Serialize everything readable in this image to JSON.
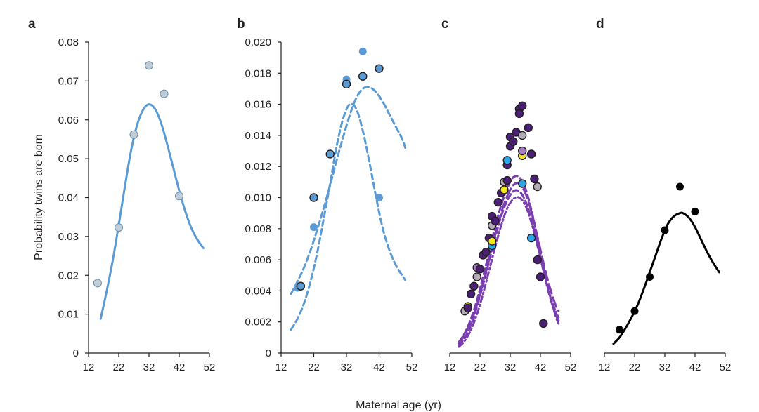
{
  "figure": {
    "y_axis_title": "Probability twins are born",
    "x_axis_title": "Maternal age (yr)"
  },
  "colors": {
    "blue_line": "#5b9bd5",
    "light_blue_dot": "#bfcdd9",
    "mid_blue_dot": "#5b9bd5",
    "cyan_dot": "#2aa5e8",
    "purple_line": "#7a3eb1",
    "dark_purple_dot": "#4a1f75",
    "yellow_dot": "#f4e61d",
    "grey_dot": "#b4aab8",
    "light_purple_dot": "#a97cc9",
    "black": "#000000"
  },
  "chart_data": [
    {
      "panel": "a",
      "type": "scatter",
      "xlabel": "",
      "ylabel": "Probability twins are born",
      "xlim": [
        12,
        52
      ],
      "ylim": [
        0,
        0.08
      ],
      "xticks": [
        "12",
        "22",
        "32",
        "42",
        "52"
      ],
      "yticks": [
        "0",
        "0.01",
        "0.02",
        "0.03",
        "0.04",
        "0.05",
        "0.06",
        "0.07",
        "0.08"
      ],
      "points": [
        {
          "x": 15,
          "y": 0.018,
          "color": "light_blue_dot"
        },
        {
          "x": 22,
          "y": 0.0323,
          "color": "light_blue_dot"
        },
        {
          "x": 27,
          "y": 0.0562,
          "color": "light_blue_dot"
        },
        {
          "x": 32,
          "y": 0.074,
          "color": "light_blue_dot"
        },
        {
          "x": 37,
          "y": 0.0667,
          "color": "light_blue_dot"
        },
        {
          "x": 42,
          "y": 0.0404,
          "color": "light_blue_dot"
        }
      ],
      "curves": [
        {
          "style": "solid",
          "color": "blue_line",
          "x": [
            16,
            18,
            20,
            22,
            24,
            26,
            28,
            30,
            32,
            34,
            36,
            38,
            40,
            42,
            44,
            46,
            48,
            50
          ],
          "y": [
            0.0088,
            0.0159,
            0.0238,
            0.033,
            0.0427,
            0.0518,
            0.0585,
            0.0625,
            0.064,
            0.0628,
            0.0592,
            0.0538,
            0.0478,
            0.0418,
            0.0365,
            0.0322,
            0.0292,
            0.027
          ]
        }
      ]
    },
    {
      "panel": "b",
      "type": "scatter",
      "xlabel": "",
      "ylabel": "",
      "xlim": [
        12,
        52
      ],
      "ylim": [
        0,
        0.02
      ],
      "xticks": [
        "12",
        "22",
        "32",
        "42",
        "52"
      ],
      "yticks": [
        "0",
        "0.002",
        "0.004",
        "0.006",
        "0.008",
        "0.010",
        "0.012",
        "0.014",
        "0.016",
        "0.018",
        "0.020"
      ],
      "points": [
        {
          "x": 17,
          "y": 0.0042,
          "color": "mid_blue_dot",
          "outline": false
        },
        {
          "x": 18,
          "y": 0.0043,
          "color": "mid_blue_dot",
          "outline": true
        },
        {
          "x": 22,
          "y": 0.0081,
          "color": "mid_blue_dot",
          "outline": false
        },
        {
          "x": 22,
          "y": 0.01,
          "color": "mid_blue_dot",
          "outline": true
        },
        {
          "x": 27,
          "y": 0.0128,
          "color": "mid_blue_dot",
          "outline": true
        },
        {
          "x": 32,
          "y": 0.0176,
          "color": "mid_blue_dot",
          "outline": false
        },
        {
          "x": 32,
          "y": 0.0173,
          "color": "mid_blue_dot",
          "outline": true
        },
        {
          "x": 37,
          "y": 0.0194,
          "color": "mid_blue_dot",
          "outline": false
        },
        {
          "x": 37,
          "y": 0.0178,
          "color": "mid_blue_dot",
          "outline": true
        },
        {
          "x": 42,
          "y": 0.0183,
          "color": "mid_blue_dot",
          "outline": true
        },
        {
          "x": 42,
          "y": 0.01,
          "color": "mid_blue_dot",
          "outline": false
        }
      ],
      "curves": [
        {
          "style": "dashed",
          "color": "mid_blue_dot",
          "x": [
            15,
            17,
            19,
            21,
            23,
            25,
            27,
            29,
            31,
            33,
            35,
            37,
            39,
            41,
            43,
            45,
            47,
            49,
            50
          ],
          "y": [
            0.0015,
            0.0022,
            0.0032,
            0.0046,
            0.0064,
            0.0086,
            0.0109,
            0.0133,
            0.0151,
            0.016,
            0.0157,
            0.0143,
            0.0123,
            0.0101,
            0.0081,
            0.0067,
            0.0057,
            0.005,
            0.0047
          ]
        },
        {
          "style": "dashed",
          "color": "mid_blue_dot",
          "x": [
            15,
            17,
            19,
            21,
            23,
            25,
            27,
            29,
            31,
            33,
            35,
            37,
            39,
            41,
            43,
            45,
            47,
            49,
            50
          ],
          "y": [
            0.0038,
            0.0046,
            0.0055,
            0.0066,
            0.0079,
            0.0093,
            0.0108,
            0.0124,
            0.0139,
            0.0153,
            0.0164,
            0.017,
            0.0171,
            0.0168,
            0.0162,
            0.0154,
            0.0146,
            0.0138,
            0.0132
          ]
        }
      ]
    },
    {
      "panel": "c",
      "type": "scatter",
      "xlabel": "",
      "ylabel": "",
      "xlim": [
        12,
        52
      ],
      "ylim": [
        0,
        0.02
      ],
      "xticks": [
        "12",
        "22",
        "32",
        "42",
        "52"
      ],
      "yticks": [],
      "points": [
        {
          "x": 17,
          "y": 0.0027,
          "color": "grey_dot"
        },
        {
          "x": 18,
          "y": 0.003,
          "color": "yellow_dot"
        },
        {
          "x": 18,
          "y": 0.0029,
          "color": "dark_purple_dot"
        },
        {
          "x": 19,
          "y": 0.0038,
          "color": "dark_purple_dot"
        },
        {
          "x": 20,
          "y": 0.0043,
          "color": "dark_purple_dot"
        },
        {
          "x": 21,
          "y": 0.0049,
          "color": "grey_dot"
        },
        {
          "x": 21,
          "y": 0.0055,
          "color": "light_purple_dot"
        },
        {
          "x": 22,
          "y": 0.0054,
          "color": "dark_purple_dot"
        },
        {
          "x": 23,
          "y": 0.0063,
          "color": "dark_purple_dot"
        },
        {
          "x": 24,
          "y": 0.0065,
          "color": "dark_purple_dot"
        },
        {
          "x": 25,
          "y": 0.0074,
          "color": "dark_purple_dot"
        },
        {
          "x": 26,
          "y": 0.0069,
          "color": "cyan_dot"
        },
        {
          "x": 26,
          "y": 0.0072,
          "color": "yellow_dot"
        },
        {
          "x": 26,
          "y": 0.0082,
          "color": "grey_dot"
        },
        {
          "x": 26,
          "y": 0.0088,
          "color": "dark_purple_dot"
        },
        {
          "x": 27,
          "y": 0.0085,
          "color": "dark_purple_dot"
        },
        {
          "x": 28,
          "y": 0.0097,
          "color": "dark_purple_dot"
        },
        {
          "x": 29,
          "y": 0.0103,
          "color": "dark_purple_dot"
        },
        {
          "x": 30,
          "y": 0.0105,
          "color": "yellow_dot"
        },
        {
          "x": 30,
          "y": 0.011,
          "color": "grey_dot"
        },
        {
          "x": 31,
          "y": 0.0111,
          "color": "dark_purple_dot"
        },
        {
          "x": 31,
          "y": 0.0121,
          "color": "dark_purple_dot"
        },
        {
          "x": 31,
          "y": 0.0124,
          "color": "cyan_dot"
        },
        {
          "x": 32,
          "y": 0.0133,
          "color": "dark_purple_dot"
        },
        {
          "x": 32,
          "y": 0.0139,
          "color": "dark_purple_dot"
        },
        {
          "x": 33,
          "y": 0.0136,
          "color": "dark_purple_dot"
        },
        {
          "x": 34,
          "y": 0.0142,
          "color": "dark_purple_dot"
        },
        {
          "x": 35,
          "y": 0.0157,
          "color": "dark_purple_dot"
        },
        {
          "x": 36,
          "y": 0.0159,
          "color": "dark_purple_dot"
        },
        {
          "x": 35,
          "y": 0.0154,
          "color": "dark_purple_dot"
        },
        {
          "x": 36,
          "y": 0.014,
          "color": "grey_dot"
        },
        {
          "x": 38,
          "y": 0.0145,
          "color": "dark_purple_dot"
        },
        {
          "x": 36,
          "y": 0.0127,
          "color": "yellow_dot"
        },
        {
          "x": 36,
          "y": 0.013,
          "color": "light_purple_dot"
        },
        {
          "x": 39,
          "y": 0.0128,
          "color": "dark_purple_dot"
        },
        {
          "x": 36,
          "y": 0.0109,
          "color": "cyan_dot"
        },
        {
          "x": 40,
          "y": 0.0112,
          "color": "dark_purple_dot"
        },
        {
          "x": 41,
          "y": 0.0107,
          "color": "grey_dot"
        },
        {
          "x": 39,
          "y": 0.0074,
          "color": "cyan_dot"
        },
        {
          "x": 41,
          "y": 0.006,
          "color": "dark_purple_dot"
        },
        {
          "x": 42,
          "y": 0.0049,
          "color": "dark_purple_dot"
        },
        {
          "x": 43,
          "y": 0.0019,
          "color": "dark_purple_dot"
        }
      ],
      "curves": [
        {
          "style": "dashed",
          "color": "purple_line",
          "x": [
            15,
            17,
            19,
            21,
            23,
            25,
            27,
            29,
            31,
            33,
            35,
            37,
            39,
            41,
            43,
            45,
            47,
            48
          ],
          "y": [
            0.0007,
            0.0013,
            0.0022,
            0.0034,
            0.0049,
            0.0065,
            0.0081,
            0.0095,
            0.0106,
            0.0113,
            0.0113,
            0.0106,
            0.0092,
            0.0074,
            0.0055,
            0.0038,
            0.0024,
            0.0019
          ]
        },
        {
          "style": "dashed",
          "color": "purple_line",
          "x": [
            15,
            17,
            19,
            21,
            23,
            25,
            27,
            29,
            31,
            33,
            35,
            37,
            39,
            41,
            43,
            45,
            47,
            48
          ],
          "y": [
            0.0005,
            0.001,
            0.0018,
            0.003,
            0.0044,
            0.0059,
            0.0074,
            0.0088,
            0.0098,
            0.0104,
            0.0104,
            0.0098,
            0.0086,
            0.007,
            0.0053,
            0.0037,
            0.0025,
            0.0021
          ]
        },
        {
          "style": "dashdot",
          "color": "purple_line",
          "x": [
            15,
            17,
            19,
            21,
            23,
            25,
            27,
            29,
            31,
            33,
            35,
            37,
            39,
            41,
            43,
            45,
            47,
            48
          ],
          "y": [
            0.0004,
            0.0008,
            0.0015,
            0.0025,
            0.0038,
            0.0053,
            0.0068,
            0.0082,
            0.0093,
            0.0099,
            0.01,
            0.0095,
            0.0084,
            0.0069,
            0.0053,
            0.0038,
            0.0027,
            0.0023
          ]
        },
        {
          "style": "longdash",
          "color": "purple_line",
          "x": [
            15,
            17,
            19,
            21,
            23,
            25,
            27,
            29,
            31,
            33,
            35,
            37,
            39,
            41,
            43,
            45,
            47,
            48
          ],
          "y": [
            0.0006,
            0.0012,
            0.002,
            0.0031,
            0.0045,
            0.006,
            0.0076,
            0.009,
            0.0101,
            0.0108,
            0.0109,
            0.0103,
            0.0091,
            0.0075,
            0.0058,
            0.0043,
            0.0031,
            0.0027
          ]
        }
      ]
    },
    {
      "panel": "d",
      "type": "scatter",
      "xlabel": "",
      "ylabel": "",
      "xlim": [
        12,
        52
      ],
      "ylim": [
        0,
        0.02
      ],
      "xticks": [
        "12",
        "22",
        "32",
        "42",
        "52"
      ],
      "yticks": [],
      "points": [
        {
          "x": 17,
          "y": 0.0015,
          "color": "black"
        },
        {
          "x": 22,
          "y": 0.0027,
          "color": "black"
        },
        {
          "x": 27,
          "y": 0.0049,
          "color": "black"
        },
        {
          "x": 32,
          "y": 0.0079,
          "color": "black"
        },
        {
          "x": 37,
          "y": 0.0107,
          "color": "black"
        },
        {
          "x": 42,
          "y": 0.0091,
          "color": "black"
        }
      ],
      "curves": [
        {
          "style": "solid",
          "color": "black",
          "x": [
            15,
            17,
            19,
            21,
            23,
            25,
            27,
            29,
            31,
            33,
            35,
            37,
            38,
            40,
            42,
            44,
            46,
            48,
            50
          ],
          "y": [
            0.0006,
            0.001,
            0.0016,
            0.0023,
            0.0031,
            0.0041,
            0.0052,
            0.0063,
            0.0074,
            0.0083,
            0.0088,
            0.009,
            0.009,
            0.0087,
            0.0081,
            0.0073,
            0.0065,
            0.0058,
            0.0052
          ]
        }
      ]
    }
  ]
}
